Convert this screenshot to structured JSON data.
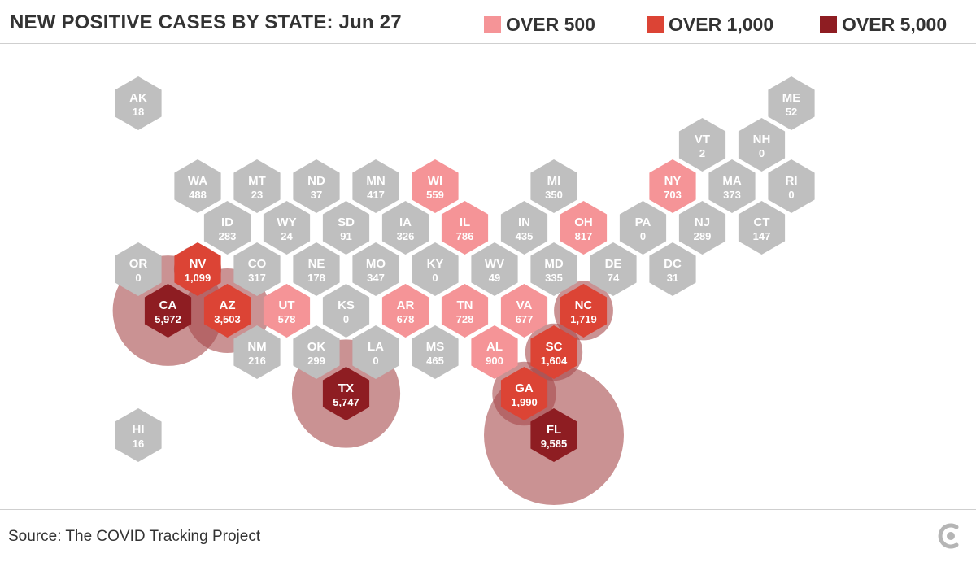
{
  "title": "NEW POSITIVE CASES BY STATE: Jun 27",
  "legend": [
    {
      "label": "OVER 500",
      "color": "#f59497"
    },
    {
      "label": "OVER 1,000",
      "color": "#dc4435"
    },
    {
      "label": "OVER 5,000",
      "color": "#8e1d22"
    }
  ],
  "source": "Source: The COVID Tracking Project",
  "colors": {
    "default": "#bfbfbf",
    "over_500": "#f59497",
    "over_1000": "#dc4435",
    "over_5000": "#8e1d22",
    "bubble": "#a64a4b"
  },
  "states": [
    {
      "abbr": "AK",
      "value": "18",
      "row": 0,
      "col": 0
    },
    {
      "abbr": "ME",
      "value": "52",
      "row": 0,
      "col": 11
    },
    {
      "abbr": "VT",
      "value": "2",
      "row": 1,
      "col": 9
    },
    {
      "abbr": "NH",
      "value": "0",
      "row": 1,
      "col": 10
    },
    {
      "abbr": "WA",
      "value": "488",
      "row": 2,
      "col": 1
    },
    {
      "abbr": "MT",
      "value": "23",
      "row": 2,
      "col": 2
    },
    {
      "abbr": "ND",
      "value": "37",
      "row": 2,
      "col": 3
    },
    {
      "abbr": "MN",
      "value": "417",
      "row": 2,
      "col": 4
    },
    {
      "abbr": "WI",
      "value": "559",
      "row": 2,
      "col": 5
    },
    {
      "abbr": "MI",
      "value": "350",
      "row": 2,
      "col": 7
    },
    {
      "abbr": "NY",
      "value": "703",
      "row": 2,
      "col": 9
    },
    {
      "abbr": "MA",
      "value": "373",
      "row": 2,
      "col": 10
    },
    {
      "abbr": "RI",
      "value": "0",
      "row": 2,
      "col": 11
    },
    {
      "abbr": "ID",
      "value": "283",
      "row": 3,
      "col": 1
    },
    {
      "abbr": "WY",
      "value": "24",
      "row": 3,
      "col": 2
    },
    {
      "abbr": "SD",
      "value": "91",
      "row": 3,
      "col": 3
    },
    {
      "abbr": "IA",
      "value": "326",
      "row": 3,
      "col": 4
    },
    {
      "abbr": "IL",
      "value": "786",
      "row": 3,
      "col": 5
    },
    {
      "abbr": "IN",
      "value": "435",
      "row": 3,
      "col": 6
    },
    {
      "abbr": "OH",
      "value": "817",
      "row": 3,
      "col": 7
    },
    {
      "abbr": "PA",
      "value": "0",
      "row": 3,
      "col": 8
    },
    {
      "abbr": "NJ",
      "value": "289",
      "row": 3,
      "col": 9
    },
    {
      "abbr": "CT",
      "value": "147",
      "row": 3,
      "col": 10
    },
    {
      "abbr": "OR",
      "value": "0",
      "row": 4,
      "col": 0
    },
    {
      "abbr": "NV",
      "value": "1,099",
      "row": 4,
      "col": 1
    },
    {
      "abbr": "CO",
      "value": "317",
      "row": 4,
      "col": 2
    },
    {
      "abbr": "NE",
      "value": "178",
      "row": 4,
      "col": 3
    },
    {
      "abbr": "MO",
      "value": "347",
      "row": 4,
      "col": 4
    },
    {
      "abbr": "KY",
      "value": "0",
      "row": 4,
      "col": 5
    },
    {
      "abbr": "WV",
      "value": "49",
      "row": 4,
      "col": 6
    },
    {
      "abbr": "MD",
      "value": "335",
      "row": 4,
      "col": 7
    },
    {
      "abbr": "DE",
      "value": "74",
      "row": 4,
      "col": 8
    },
    {
      "abbr": "DC",
      "value": "31",
      "row": 4,
      "col": 9
    },
    {
      "abbr": "CA",
      "value": "5,972",
      "row": 5,
      "col": 0
    },
    {
      "abbr": "AZ",
      "value": "3,503",
      "row": 5,
      "col": 1
    },
    {
      "abbr": "UT",
      "value": "578",
      "row": 5,
      "col": 2
    },
    {
      "abbr": "KS",
      "value": "0",
      "row": 5,
      "col": 3
    },
    {
      "abbr": "AR",
      "value": "678",
      "row": 5,
      "col": 4
    },
    {
      "abbr": "TN",
      "value": "728",
      "row": 5,
      "col": 5
    },
    {
      "abbr": "VA",
      "value": "677",
      "row": 5,
      "col": 6
    },
    {
      "abbr": "NC",
      "value": "1,719",
      "row": 5,
      "col": 7
    },
    {
      "abbr": "NM",
      "value": "216",
      "row": 6,
      "col": 2
    },
    {
      "abbr": "OK",
      "value": "299",
      "row": 6,
      "col": 3
    },
    {
      "abbr": "LA",
      "value": "0",
      "row": 6,
      "col": 4
    },
    {
      "abbr": "MS",
      "value": "465",
      "row": 6,
      "col": 5
    },
    {
      "abbr": "AL",
      "value": "900",
      "row": 6,
      "col": 6
    },
    {
      "abbr": "SC",
      "value": "1,604",
      "row": 6,
      "col": 7
    },
    {
      "abbr": "TX",
      "value": "5,747",
      "row": 7,
      "col": 3
    },
    {
      "abbr": "GA",
      "value": "1,990",
      "row": 7,
      "col": 6
    },
    {
      "abbr": "HI",
      "value": "16",
      "row": 8,
      "col": 0
    },
    {
      "abbr": "FL",
      "value": "9,585",
      "row": 8,
      "col": 7
    }
  ]
}
